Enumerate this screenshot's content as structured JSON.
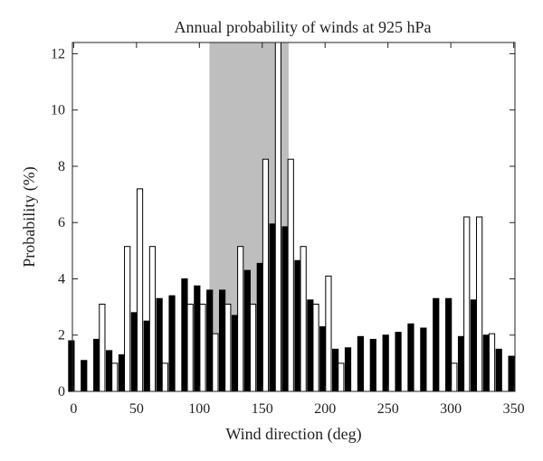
{
  "chart_data": {
    "type": "bar",
    "title": "Annual probability of winds at 925 hPa",
    "xlabel": "Wind direction (deg)",
    "ylabel": "Probability (%)",
    "xlim": [
      -1,
      351
    ],
    "ylim": [
      0,
      12.4
    ],
    "x_ticks": [
      "0",
      "50",
      "100",
      "150",
      "200",
      "250",
      "300",
      "350"
    ],
    "y_ticks": [
      "0",
      "2",
      "4",
      "6",
      "8",
      "10",
      "12"
    ],
    "highlight_band": {
      "from": 108,
      "to": 171,
      "color": "#bebebe"
    },
    "series": [
      {
        "fill": "#000000",
        "points": [
          [
            0,
            1.8
          ],
          [
            10,
            1.1
          ],
          [
            20,
            1.85
          ],
          [
            30,
            1.45
          ],
          [
            40,
            1.3
          ],
          [
            50,
            2.8
          ],
          [
            60,
            2.5
          ],
          [
            70,
            3.3
          ],
          [
            80,
            3.4
          ],
          [
            90,
            4.0
          ],
          [
            100,
            3.75
          ],
          [
            110,
            3.6
          ],
          [
            120,
            3.6
          ],
          [
            130,
            2.7
          ],
          [
            140,
            4.3
          ],
          [
            150,
            4.55
          ],
          [
            160,
            5.95
          ],
          [
            170,
            5.85
          ],
          [
            180,
            4.65
          ],
          [
            190,
            3.25
          ],
          [
            200,
            2.3
          ],
          [
            210,
            1.5
          ],
          [
            220,
            1.55
          ],
          [
            230,
            1.95
          ],
          [
            240,
            1.85
          ],
          [
            250,
            2.0
          ],
          [
            260,
            2.1
          ],
          [
            270,
            2.4
          ],
          [
            280,
            2.25
          ],
          [
            290,
            3.3
          ],
          [
            300,
            3.3
          ],
          [
            310,
            1.95
          ],
          [
            320,
            3.25
          ],
          [
            330,
            2.0
          ],
          [
            340,
            1.5
          ],
          [
            350,
            1.25
          ]
        ]
      },
      {
        "fill": "#ffffff",
        "points": [
          [
            20,
            3.1
          ],
          [
            30,
            1.0
          ],
          [
            40,
            5.15
          ],
          [
            50,
            7.2
          ],
          [
            60,
            5.15
          ],
          [
            70,
            1.0
          ],
          [
            90,
            3.1
          ],
          [
            100,
            3.1
          ],
          [
            110,
            2.05
          ],
          [
            120,
            3.1
          ],
          [
            130,
            5.15
          ],
          [
            140,
            3.1
          ],
          [
            150,
            8.25
          ],
          [
            160,
            12.4
          ],
          [
            170,
            8.25
          ],
          [
            180,
            5.15
          ],
          [
            190,
            3.1
          ],
          [
            200,
            4.1
          ],
          [
            210,
            1.0
          ],
          [
            300,
            1.0
          ],
          [
            310,
            6.2
          ],
          [
            320,
            6.2
          ],
          [
            330,
            2.05
          ]
        ]
      }
    ]
  }
}
